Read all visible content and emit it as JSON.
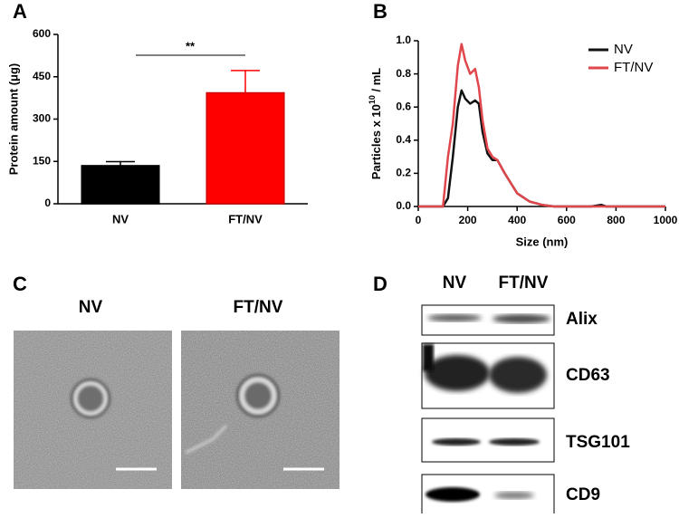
{
  "chart_data": [
    {
      "type": "bar",
      "panel_label": "A",
      "y_label": "Protein amount (μg)",
      "categories": [
        "NV",
        "FT/NV"
      ],
      "values": [
        135,
        393
      ],
      "errors": [
        14,
        79
      ],
      "colors": [
        "#000000",
        "#ff0000"
      ],
      "annotation": "**",
      "ylim": [
        0,
        600
      ],
      "yticks": [
        0,
        150,
        300,
        450,
        600
      ]
    },
    {
      "type": "line",
      "panel_label": "B",
      "y_label": {
        "text": "Particles x 10",
        "sup": "10",
        "tail": " / mL"
      },
      "x_label": "Size (nm)",
      "x": [
        0,
        100,
        120,
        140,
        160,
        175,
        190,
        210,
        230,
        245,
        260,
        280,
        300,
        320,
        350,
        400,
        450,
        500,
        550,
        600,
        700,
        740,
        760,
        1000
      ],
      "series": [
        {
          "name": "NV",
          "color": "#111111",
          "values": [
            0,
            0,
            0.05,
            0.3,
            0.6,
            0.7,
            0.65,
            0.62,
            0.64,
            0.62,
            0.45,
            0.32,
            0.28,
            0.28,
            0.2,
            0.08,
            0.03,
            0.01,
            0,
            0,
            0,
            0.01,
            0,
            0
          ]
        },
        {
          "name": "FT/NV",
          "color": "#e0474c",
          "values": [
            0,
            0,
            0.3,
            0.5,
            0.85,
            0.98,
            0.88,
            0.8,
            0.83,
            0.72,
            0.52,
            0.35,
            0.3,
            0.28,
            0.2,
            0.08,
            0.03,
            0.01,
            0,
            0,
            0,
            0,
            0,
            0
          ]
        }
      ],
      "xlim": [
        0,
        1000
      ],
      "xticks": [
        0,
        200,
        400,
        600,
        800,
        1000
      ],
      "ylim": [
        0,
        1.0
      ],
      "yticks": [
        {
          "value": 0,
          "label": "0.0"
        },
        {
          "value": 0.2,
          "label": "0.2"
        },
        {
          "value": 0.4,
          "label": "0.4"
        },
        {
          "value": 0.6,
          "label": "0.6"
        },
        {
          "value": 0.8,
          "label": "0.8"
        },
        {
          "value": 1.0,
          "label": "1.0"
        }
      ],
      "legend": "top-right"
    }
  ],
  "panel_c": {
    "label": "C",
    "columns": [
      "NV",
      "FT/NV"
    ]
  },
  "panel_d": {
    "label": "D",
    "columns": [
      "NV",
      "FT/NV"
    ],
    "rows": [
      "Alix",
      "CD63",
      "TSG101",
      "CD9"
    ]
  }
}
